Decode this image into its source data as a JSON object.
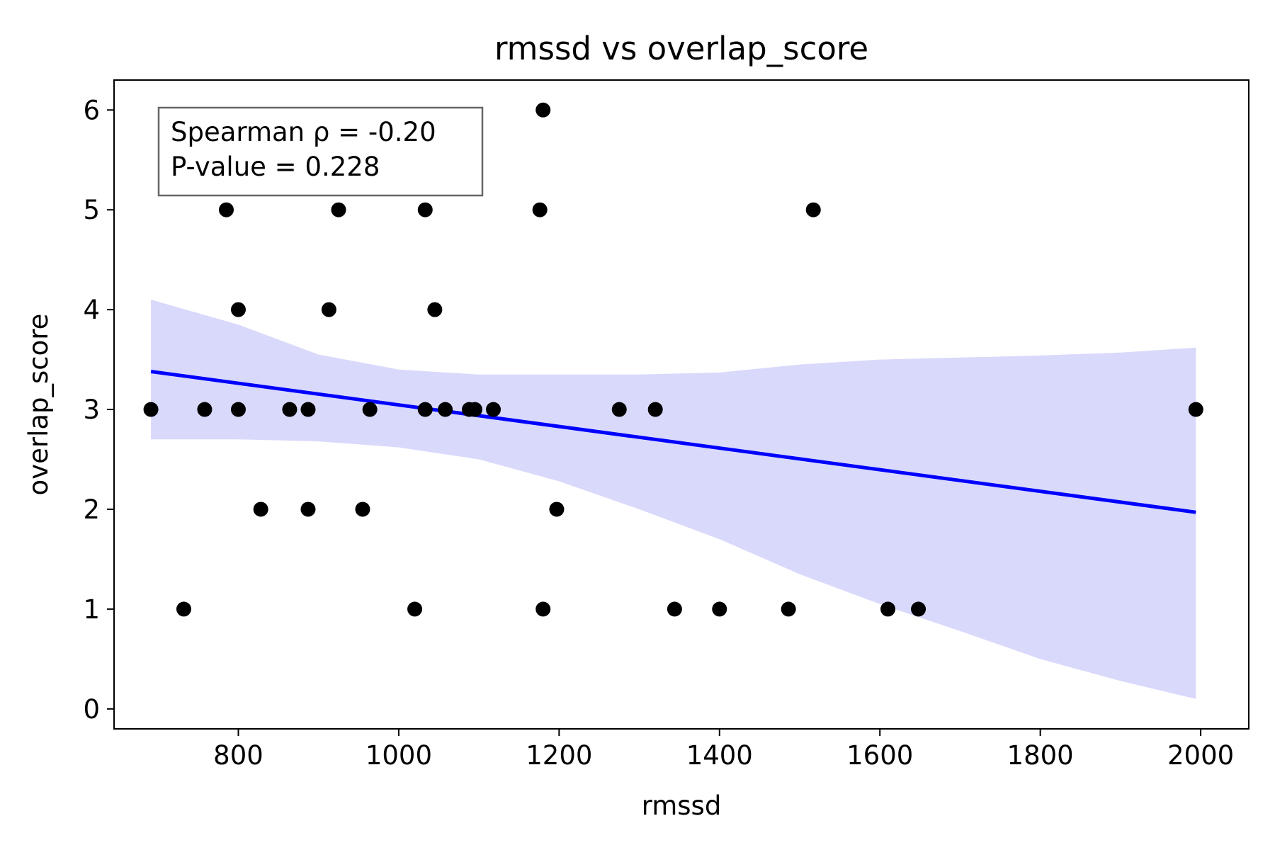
{
  "chart_data": {
    "type": "scatter",
    "title": "rmssd vs overlap_score",
    "xlabel": "rmssd",
    "ylabel": "overlap_score",
    "xlim": [
      645,
      2060
    ],
    "ylim": [
      -0.2,
      6.3
    ],
    "xticks": [
      800,
      1000,
      1200,
      1400,
      1600,
      1800,
      2000
    ],
    "yticks": [
      0,
      1,
      2,
      3,
      4,
      5,
      6
    ],
    "grid": false,
    "points": [
      {
        "x": 691,
        "y": 3
      },
      {
        "x": 732,
        "y": 1
      },
      {
        "x": 758,
        "y": 3
      },
      {
        "x": 785,
        "y": 5
      },
      {
        "x": 800,
        "y": 4
      },
      {
        "x": 800,
        "y": 3
      },
      {
        "x": 828,
        "y": 2
      },
      {
        "x": 864,
        "y": 3
      },
      {
        "x": 887,
        "y": 3
      },
      {
        "x": 887,
        "y": 2
      },
      {
        "x": 913,
        "y": 4
      },
      {
        "x": 925,
        "y": 5
      },
      {
        "x": 955,
        "y": 2
      },
      {
        "x": 964,
        "y": 3
      },
      {
        "x": 1020,
        "y": 1
      },
      {
        "x": 1033,
        "y": 5
      },
      {
        "x": 1033,
        "y": 3
      },
      {
        "x": 1045,
        "y": 4
      },
      {
        "x": 1058,
        "y": 3
      },
      {
        "x": 1088,
        "y": 3
      },
      {
        "x": 1095,
        "y": 3
      },
      {
        "x": 1118,
        "y": 3
      },
      {
        "x": 1176,
        "y": 5
      },
      {
        "x": 1180,
        "y": 6
      },
      {
        "x": 1180,
        "y": 1
      },
      {
        "x": 1197,
        "y": 2
      },
      {
        "x": 1275,
        "y": 3
      },
      {
        "x": 1320,
        "y": 3
      },
      {
        "x": 1344,
        "y": 1
      },
      {
        "x": 1400,
        "y": 1
      },
      {
        "x": 1486,
        "y": 1
      },
      {
        "x": 1517,
        "y": 5
      },
      {
        "x": 1610,
        "y": 1
      },
      {
        "x": 1648,
        "y": 1
      },
      {
        "x": 1994,
        "y": 3
      }
    ],
    "regression": {
      "x": [
        691,
        1994
      ],
      "y": [
        3.38,
        1.97
      ]
    },
    "confidence_band": {
      "x": [
        691,
        800,
        900,
        1000,
        1100,
        1200,
        1300,
        1400,
        1500,
        1600,
        1700,
        1800,
        1900,
        1994
      ],
      "upper": [
        4.1,
        3.85,
        3.55,
        3.4,
        3.35,
        3.35,
        3.35,
        3.37,
        3.45,
        3.5,
        3.52,
        3.54,
        3.57,
        3.62
      ],
      "lower": [
        2.7,
        2.7,
        2.68,
        2.62,
        2.5,
        2.28,
        2.0,
        1.7,
        1.35,
        1.05,
        0.78,
        0.5,
        0.28,
        0.1
      ]
    },
    "annotation": {
      "lines": [
        "Spearman ρ = -0.20",
        "P-value = 0.228"
      ]
    },
    "colors": {
      "points": "#000000",
      "regression_line": "#0000ff",
      "confidence_band": "#d9d9fc",
      "annotation_border": "#666666"
    }
  }
}
